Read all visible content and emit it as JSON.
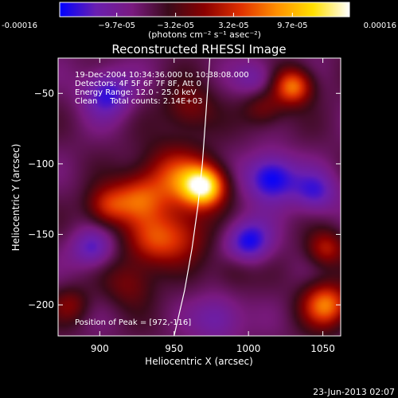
{
  "chart_data": {
    "type": "heatmap",
    "title": "Reconstructed RHESSI Image",
    "xlabel": "Heliocentric X (arcsec)",
    "ylabel": "Heliocentric Y (arcsec)",
    "xlim": [
      872,
      1062
    ],
    "ylim": [
      -222,
      -25
    ],
    "x_ticks": [
      900,
      950,
      1000,
      1050
    ],
    "y_ticks": [
      -50,
      -100,
      -150,
      -200
    ],
    "colorbar": {
      "range": [
        -0.00016,
        0.00016
      ],
      "tick_values": [
        -0.00016,
        -9.7e-05,
        -3.2e-05,
        3.2e-05,
        9.7e-05,
        0.00016
      ],
      "tick_labels": [
        "-0.00016",
        "−9.7e-05",
        "−3.2e-05",
        "3.2e-05",
        "9.7e-05",
        "0.00016"
      ],
      "label": "(photons cm⁻² s⁻¹ asec⁻²)",
      "colors": [
        "#0000ff",
        "#6a1fb0",
        "#7a1a80",
        "#3a0a1a",
        "#8a0000",
        "#e03000",
        "#ff9000",
        "#ffe000",
        "#ffffff"
      ]
    },
    "annotations": [
      "19-Dec-2004 10:34:36.000 to 10:38:08.000",
      "Detectors: 4F 5F 6F 7F 8F, Att 0",
      "Energy Range: 12.0 - 25.0 keV",
      "Clean     Total counts: 2.14E+03"
    ],
    "peak_label": "Position of Peak = [972,-116]",
    "peak": {
      "x": 972,
      "y": -116
    },
    "limb_curve": [
      [
        950,
        -222
      ],
      [
        957,
        -190
      ],
      [
        962,
        -160
      ],
      [
        966,
        -130
      ],
      [
        969,
        -100
      ],
      [
        971,
        -70
      ],
      [
        973,
        -40
      ],
      [
        974,
        -25
      ]
    ],
    "grid": false,
    "sources": [
      {
        "x": 970,
        "y": -116,
        "amp": 1.7,
        "s": 10
      },
      {
        "x": 950,
        "y": -110,
        "amp": 0.9,
        "s": 16
      },
      {
        "x": 925,
        "y": -125,
        "amp": 0.8,
        "s": 12
      },
      {
        "x": 905,
        "y": -130,
        "amp": 0.75,
        "s": 10
      },
      {
        "x": 935,
        "y": -155,
        "amp": 0.7,
        "s": 13
      },
      {
        "x": 955,
        "y": -150,
        "amp": 0.6,
        "s": 14
      },
      {
        "x": 1030,
        "y": -45,
        "amp": 1.15,
        "s": 9
      },
      {
        "x": 1010,
        "y": -60,
        "amp": 0.5,
        "s": 10
      },
      {
        "x": 1052,
        "y": -200,
        "amp": 1.15,
        "s": 11
      },
      {
        "x": 1052,
        "y": -160,
        "amp": 0.7,
        "s": 9
      },
      {
        "x": 920,
        "y": -185,
        "amp": 0.45,
        "s": 12
      },
      {
        "x": 880,
        "y": -200,
        "amp": 0.45,
        "s": 9
      },
      {
        "x": 990,
        "y": -175,
        "amp": 0.3,
        "s": 10
      },
      {
        "x": 960,
        "y": -60,
        "amp": 0.5,
        "s": 12
      },
      {
        "x": 905,
        "y": -50,
        "amp": -0.7,
        "s": 12
      },
      {
        "x": 1015,
        "y": -110,
        "amp": -0.9,
        "s": 12
      },
      {
        "x": 1000,
        "y": -155,
        "amp": -0.8,
        "s": 11
      },
      {
        "x": 1045,
        "y": -120,
        "amp": -0.6,
        "s": 11
      },
      {
        "x": 895,
        "y": -160,
        "amp": -0.6,
        "s": 10
      },
      {
        "x": 980,
        "y": -210,
        "amp": -0.5,
        "s": 12
      },
      {
        "x": 1005,
        "y": -40,
        "amp": -0.45,
        "s": 10
      }
    ]
  },
  "footer": {
    "date": "23-Jun-2013 02:07"
  }
}
